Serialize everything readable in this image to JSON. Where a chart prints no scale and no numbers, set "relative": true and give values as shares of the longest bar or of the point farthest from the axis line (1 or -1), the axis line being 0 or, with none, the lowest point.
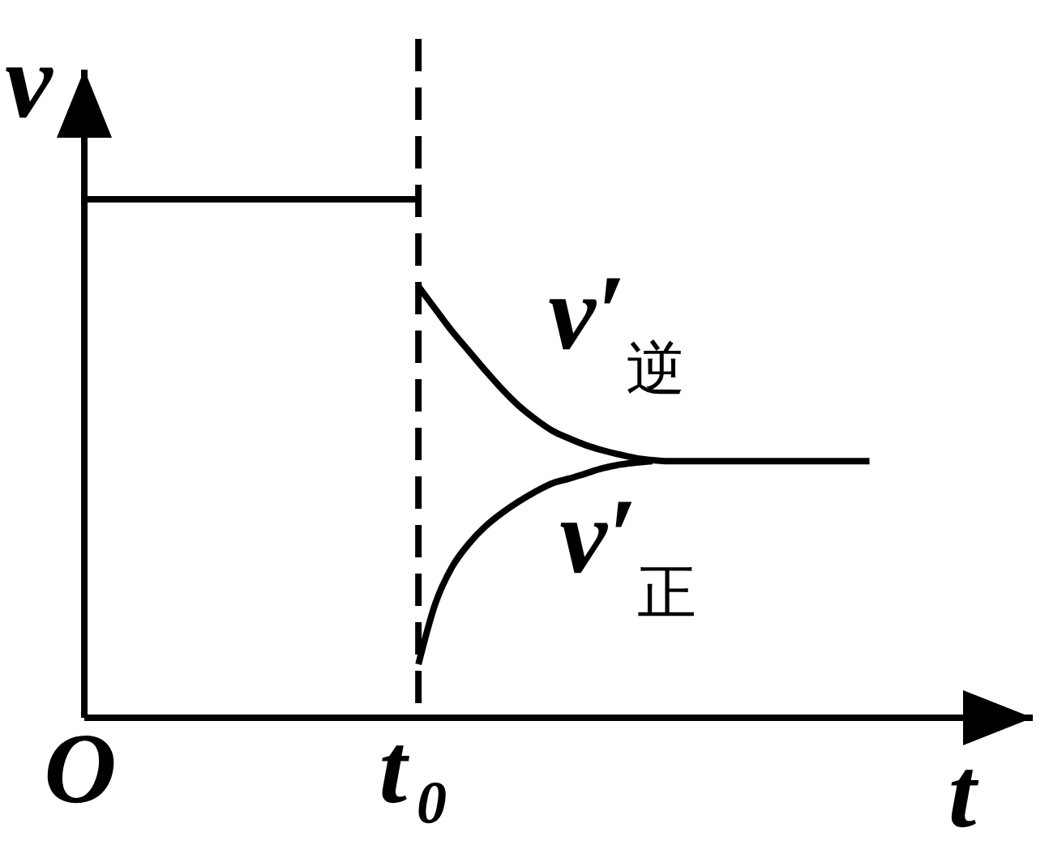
{
  "chart_data": {
    "type": "line",
    "relative": true,
    "xlabel": "t",
    "ylabel": "v",
    "categories": [
      "O",
      null,
      null,
      null,
      null,
      null,
      null,
      null,
      null,
      null,
      null,
      null,
      null,
      null,
      null,
      null,
      null,
      null,
      null,
      null,
      "t₀",
      null,
      null,
      null,
      null,
      null,
      null,
      null,
      null,
      null,
      null,
      null,
      null,
      null,
      null,
      null,
      null,
      null,
      null,
      null,
      null,
      null,
      null,
      null,
      null,
      null,
      null,
      null,
      null,
      null,
      null,
      null,
      null,
      null,
      null,
      null,
      null
    ],
    "series": [
      {
        "color": "#000000",
        "values": [
          1,
          1,
          1,
          1,
          1,
          1,
          1,
          1,
          1,
          1,
          1,
          1,
          1,
          1,
          1,
          1,
          1,
          1,
          1,
          1,
          1,
          null,
          null,
          null,
          null,
          null,
          null,
          null,
          null,
          null,
          null,
          null,
          null,
          null,
          null,
          null,
          null,
          null,
          null,
          null,
          null,
          null,
          null,
          null,
          null,
          null,
          null,
          null,
          null,
          null,
          null,
          null,
          null,
          null,
          null,
          null,
          null
        ]
      },
      {
        "name": "v′$_{逆}$",
        "color": "#000000",
        "values": [
          null,
          null,
          null,
          null,
          null,
          null,
          null,
          null,
          null,
          null,
          null,
          null,
          null,
          null,
          null,
          null,
          null,
          null,
          null,
          null,
          0.832,
          0.789,
          0.746,
          0.708,
          0.67,
          0.634,
          0.602,
          0.576,
          0.554,
          0.539,
          0.526,
          0.516,
          0.508,
          0.501,
          0.497,
          0.495,
          0.495,
          0.495,
          0.495,
          0.495,
          0.495,
          0.495,
          0.495,
          0.495,
          0.495,
          0.495,
          0.495,
          0.495,
          null,
          null,
          null,
          null,
          null,
          null,
          null,
          null,
          null
        ]
      },
      {
        "name": "v′$_{正}$",
        "color": "#000000",
        "values": [
          null,
          null,
          null,
          null,
          null,
          null,
          null,
          null,
          null,
          null,
          null,
          null,
          null,
          null,
          null,
          null,
          null,
          null,
          null,
          null,
          0.103,
          0.219,
          0.29,
          0.335,
          0.369,
          0.395,
          0.417,
          0.436,
          0.452,
          0.461,
          0.471,
          0.481,
          0.488,
          0.492,
          0.495,
          null,
          null,
          null,
          null,
          null,
          null,
          null,
          null,
          null,
          null,
          null,
          null,
          null,
          null,
          null,
          null,
          null,
          null,
          null,
          null,
          null,
          null
        ]
      }
    ],
    "ref_lines": [
      {
        "axis": "x",
        "value": "t₀",
        "color": "#000000",
        "line_style": "dashed"
      }
    ]
  }
}
